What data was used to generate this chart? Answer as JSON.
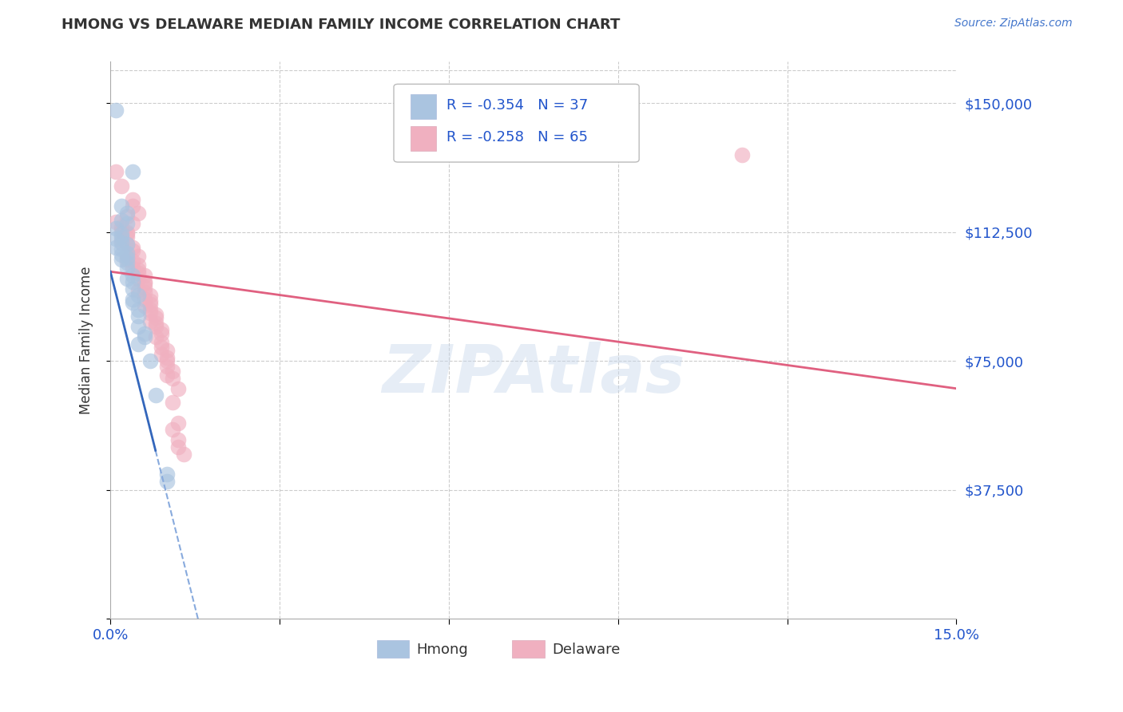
{
  "title": "HMONG VS DELAWARE MEDIAN FAMILY INCOME CORRELATION CHART",
  "source": "Source: ZipAtlas.com",
  "ylabel": "Median Family Income",
  "yticks": [
    0,
    37500,
    75000,
    112500,
    150000
  ],
  "ytick_labels": [
    "",
    "$37,500",
    "$75,000",
    "$112,500",
    "$150,000"
  ],
  "xmin": 0.0,
  "xmax": 0.15,
  "ymin": 0,
  "ymax": 162000,
  "legend_r1": "-0.354",
  "legend_n1": "37",
  "legend_r2": "-0.258",
  "legend_n2": "65",
  "blue_color": "#aac4e0",
  "pink_color": "#f0b0c0",
  "blue_line_color": "#3366bb",
  "pink_line_color": "#e06080",
  "legend_label1": "Hmong",
  "legend_label2": "Delaware",
  "watermark": "ZIPAtlas",
  "hmong_points": [
    [
      0.001,
      148000
    ],
    [
      0.004,
      130000
    ],
    [
      0.002,
      120000
    ],
    [
      0.003,
      118000
    ],
    [
      0.002,
      116000
    ],
    [
      0.003,
      115000
    ],
    [
      0.001,
      113500
    ],
    [
      0.002,
      112000
    ],
    [
      0.002,
      111000
    ],
    [
      0.001,
      110500
    ],
    [
      0.002,
      109500
    ],
    [
      0.003,
      109000
    ],
    [
      0.001,
      108000
    ],
    [
      0.002,
      107500
    ],
    [
      0.003,
      106500
    ],
    [
      0.002,
      106000
    ],
    [
      0.003,
      105000
    ],
    [
      0.002,
      104500
    ],
    [
      0.003,
      103500
    ],
    [
      0.003,
      102000
    ],
    [
      0.004,
      100000
    ],
    [
      0.003,
      99000
    ],
    [
      0.004,
      98000
    ],
    [
      0.004,
      96000
    ],
    [
      0.005,
      94000
    ],
    [
      0.004,
      93000
    ],
    [
      0.004,
      92000
    ],
    [
      0.005,
      90000
    ],
    [
      0.005,
      88000
    ],
    [
      0.005,
      85000
    ],
    [
      0.006,
      83000
    ],
    [
      0.006,
      82000
    ],
    [
      0.005,
      80000
    ],
    [
      0.007,
      75000
    ],
    [
      0.008,
      65000
    ],
    [
      0.01,
      42000
    ],
    [
      0.01,
      40000
    ]
  ],
  "delaware_points": [
    [
      0.001,
      130000
    ],
    [
      0.002,
      126000
    ],
    [
      0.004,
      122000
    ],
    [
      0.004,
      120000
    ],
    [
      0.005,
      118000
    ],
    [
      0.003,
      117000
    ],
    [
      0.001,
      115500
    ],
    [
      0.004,
      115000
    ],
    [
      0.002,
      114000
    ],
    [
      0.002,
      113000
    ],
    [
      0.003,
      112500
    ],
    [
      0.003,
      112000
    ],
    [
      0.003,
      111000
    ],
    [
      0.002,
      110000
    ],
    [
      0.003,
      109000
    ],
    [
      0.004,
      108000
    ],
    [
      0.004,
      107000
    ],
    [
      0.003,
      106000
    ],
    [
      0.005,
      105500
    ],
    [
      0.003,
      104500
    ],
    [
      0.004,
      104000
    ],
    [
      0.005,
      103000
    ],
    [
      0.004,
      102000
    ],
    [
      0.005,
      101500
    ],
    [
      0.005,
      100500
    ],
    [
      0.006,
      100000
    ],
    [
      0.005,
      99000
    ],
    [
      0.006,
      98000
    ],
    [
      0.006,
      97500
    ],
    [
      0.006,
      96500
    ],
    [
      0.005,
      95500
    ],
    [
      0.006,
      95000
    ],
    [
      0.007,
      94000
    ],
    [
      0.006,
      93000
    ],
    [
      0.007,
      92500
    ],
    [
      0.007,
      91500
    ],
    [
      0.006,
      91000
    ],
    [
      0.007,
      90000
    ],
    [
      0.007,
      89000
    ],
    [
      0.008,
      88500
    ],
    [
      0.008,
      87500
    ],
    [
      0.007,
      86500
    ],
    [
      0.008,
      86000
    ],
    [
      0.008,
      85000
    ],
    [
      0.009,
      84000
    ],
    [
      0.009,
      83000
    ],
    [
      0.008,
      82000
    ],
    [
      0.009,
      80500
    ],
    [
      0.009,
      79000
    ],
    [
      0.01,
      78000
    ],
    [
      0.009,
      77000
    ],
    [
      0.01,
      76000
    ],
    [
      0.01,
      75000
    ],
    [
      0.01,
      73500
    ],
    [
      0.011,
      72000
    ],
    [
      0.01,
      71000
    ],
    [
      0.011,
      70000
    ],
    [
      0.012,
      67000
    ],
    [
      0.011,
      63000
    ],
    [
      0.112,
      135000
    ],
    [
      0.012,
      57000
    ],
    [
      0.011,
      55000
    ],
    [
      0.012,
      52000
    ],
    [
      0.012,
      50000
    ],
    [
      0.013,
      48000
    ]
  ],
  "blue_line_intercept": 101000,
  "blue_line_slope": -6500000,
  "pink_line_x0": 0.0,
  "pink_line_y0": 101000,
  "pink_line_x1": 0.15,
  "pink_line_y1": 67000
}
